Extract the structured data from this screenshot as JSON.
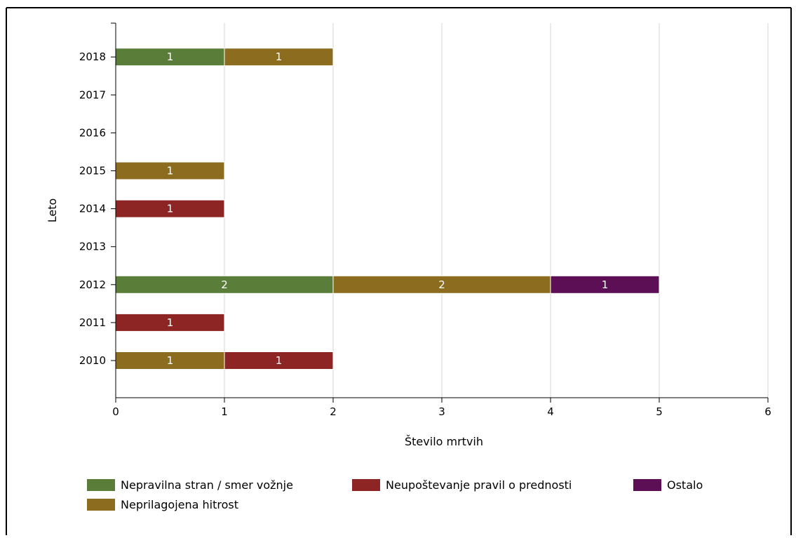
{
  "chart_data": {
    "type": "bar",
    "orientation": "horizontal",
    "stacked": true,
    "categories": [
      "2010",
      "2011",
      "2012",
      "2013",
      "2014",
      "2015",
      "2016",
      "2017",
      "2018"
    ],
    "series": [
      {
        "name": "Nepravilna stran / smer vožnje",
        "color": "#5a7e3a",
        "values": [
          0,
          0,
          2,
          0,
          0,
          0,
          0,
          0,
          1
        ]
      },
      {
        "name": "Neprilagojena hitrost",
        "color": "#8c6d1f",
        "values": [
          1,
          0,
          2,
          0,
          0,
          1,
          0,
          0,
          1
        ]
      },
      {
        "name": "Neupoštevanje pravil o prednosti",
        "color": "#8e2525",
        "values": [
          1,
          1,
          0,
          0,
          1,
          0,
          0,
          0,
          0
        ]
      },
      {
        "name": "Ostalo",
        "color": "#5c0f55",
        "values": [
          0,
          0,
          1,
          0,
          0,
          0,
          0,
          0,
          0
        ]
      }
    ],
    "xlabel": "Število mrtvih",
    "ylabel": "Leto",
    "xlim": [
      0,
      6
    ],
    "xticks": [
      "0",
      "1",
      "2",
      "3",
      "4",
      "5",
      "6"
    ],
    "data_labels": true,
    "grid": "vertical",
    "legend_position": "bottom",
    "legend_order": [
      "Nepravilna stran / smer vožnje",
      "Neupoštevanje pravil o prednosti",
      "Ostalo",
      "Neprilagojena hitrost"
    ]
  }
}
